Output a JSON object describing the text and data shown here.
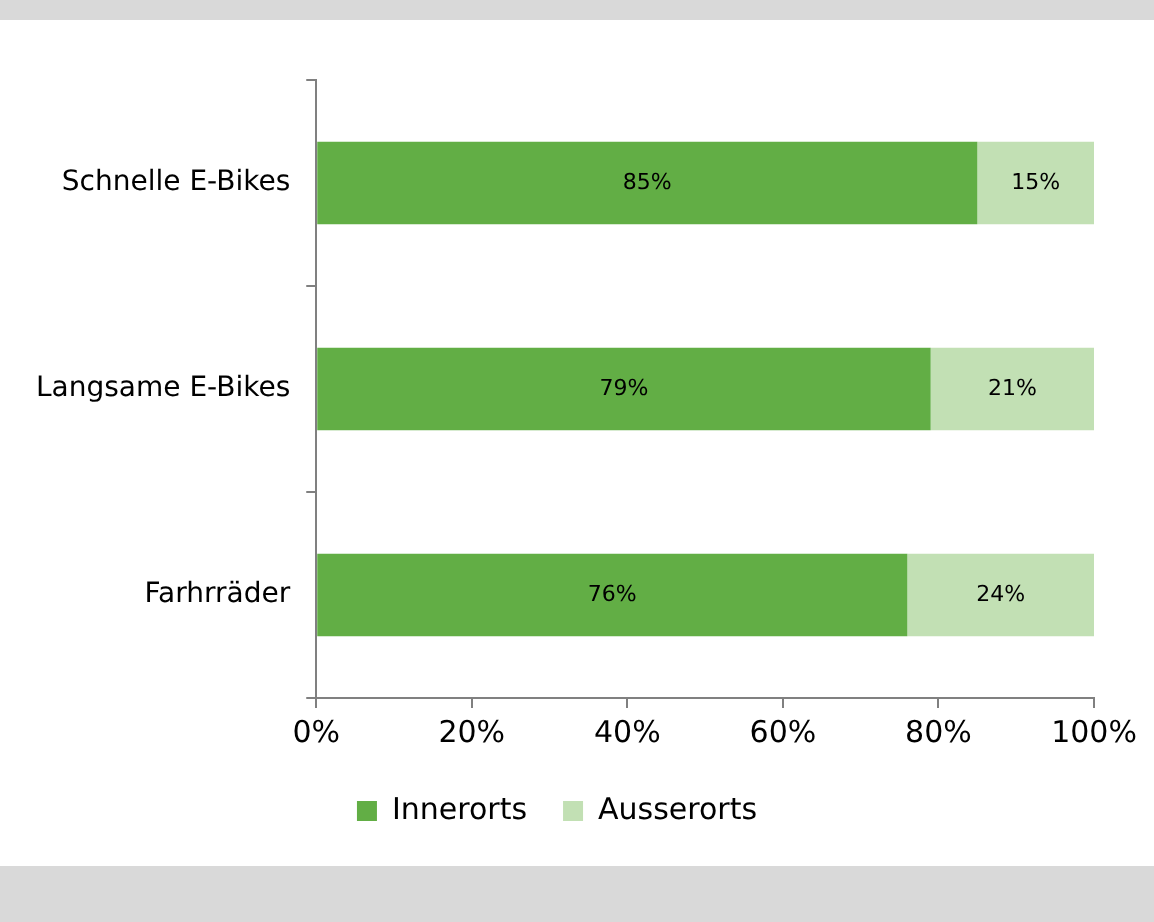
{
  "chart_data": {
    "type": "bar",
    "orientation": "horizontal",
    "stacked": true,
    "categories": [
      "Schnelle E-Bikes",
      "Langsame E-Bikes",
      "Farhrräder"
    ],
    "series": [
      {
        "name": "Innerorts",
        "color": "#62ae45",
        "values": [
          85,
          79,
          76
        ],
        "value_labels": [
          "85%",
          "79%",
          "76%"
        ]
      },
      {
        "name": "Ausserorts",
        "color": "#c2e0b4",
        "values": [
          15,
          21,
          24
        ],
        "value_labels": [
          "15%",
          "21%",
          "24%"
        ]
      }
    ],
    "xlim": [
      0,
      100
    ],
    "xticks": [
      {
        "value": 0,
        "label": "0%"
      },
      {
        "value": 20,
        "label": "20%"
      },
      {
        "value": 40,
        "label": "40%"
      },
      {
        "value": 60,
        "label": "60%"
      },
      {
        "value": 80,
        "label": "80%"
      },
      {
        "value": 100,
        "label": "100%"
      }
    ],
    "grid": false,
    "legend": "bottom"
  }
}
